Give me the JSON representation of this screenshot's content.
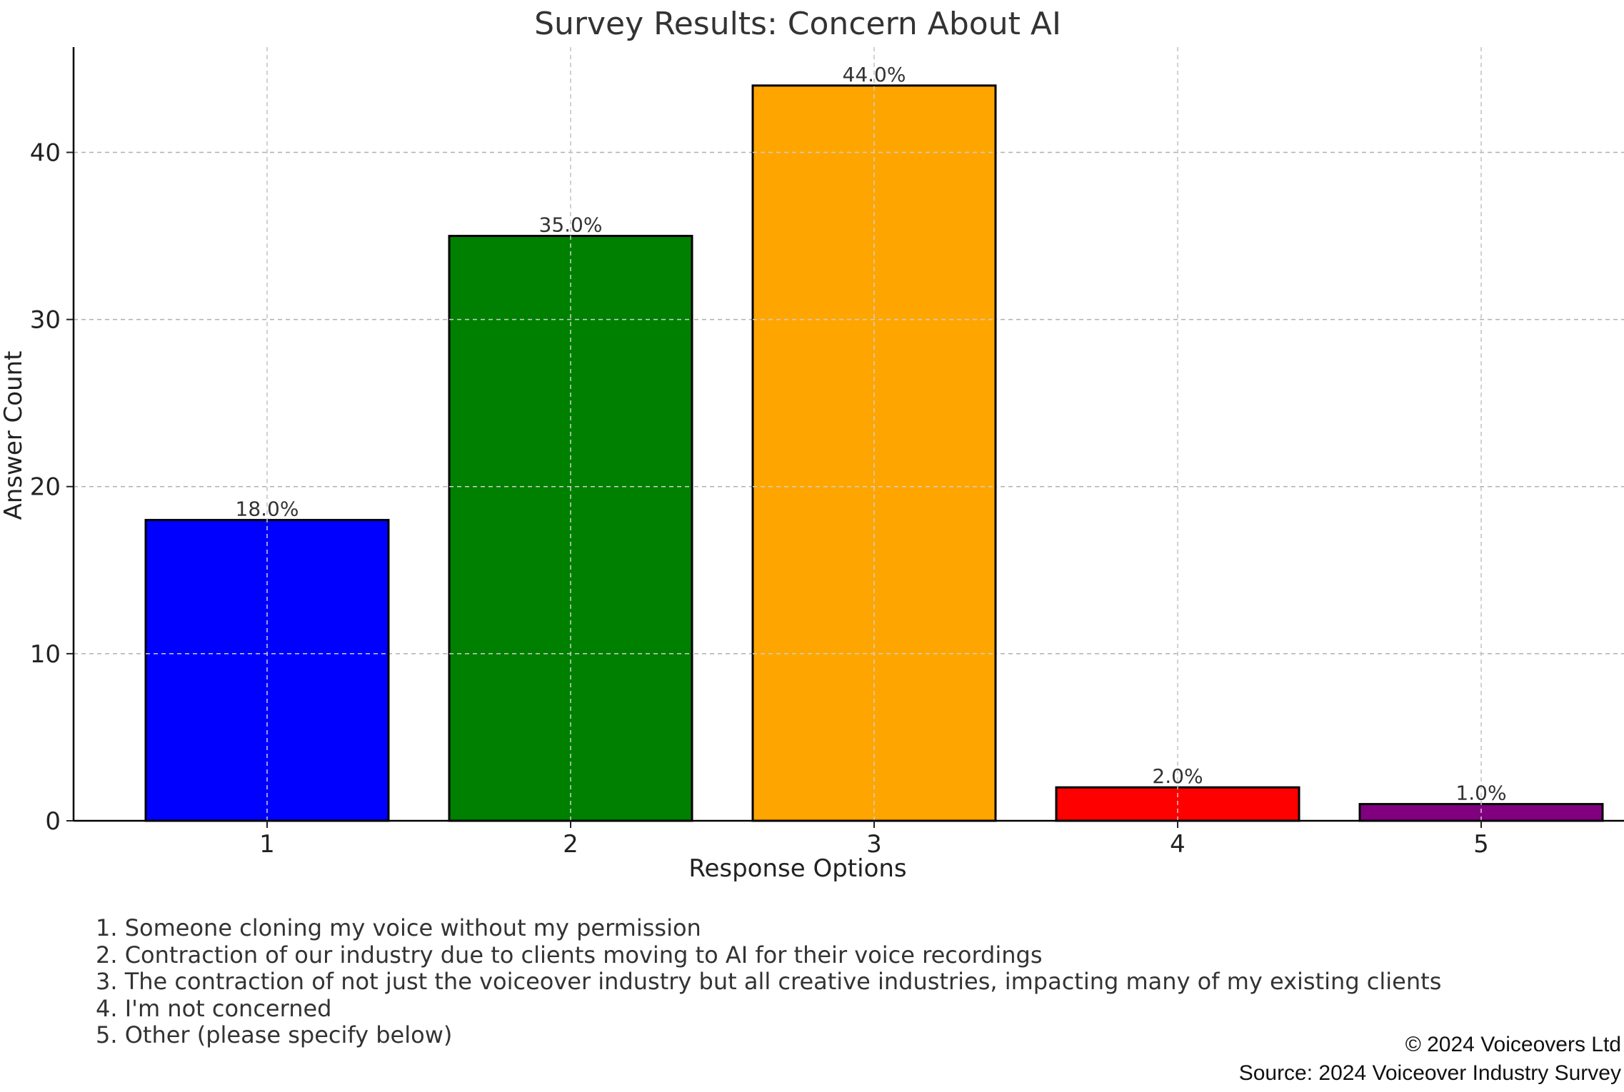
{
  "chart_data": {
    "type": "bar",
    "title": "Survey Results: Concern About AI",
    "xlabel": "Response Options",
    "ylabel": "Answer Count",
    "categories": [
      "1",
      "2",
      "3",
      "4",
      "5"
    ],
    "values": [
      18,
      35,
      44,
      2,
      1
    ],
    "data_labels": [
      "18.0%",
      "35.0%",
      "44.0%",
      "2.0%",
      "1.0%"
    ],
    "colors": [
      "#0000ff",
      "#008000",
      "#ffa500",
      "#ff0000",
      "#800080"
    ],
    "ylim": [
      0,
      46.3
    ],
    "yticks": [
      0,
      10,
      20,
      30,
      40
    ],
    "grid": true,
    "legend": "none"
  },
  "notes": [
    "1. Someone cloning my voice without my permission",
    "2. Contraction of our industry due to clients moving to AI for their voice recordings",
    "3. The contraction of not just the voiceover industry but all creative industries, impacting many of my existing clients",
    "4. I'm not concerned",
    "5. Other (please specify below)"
  ],
  "footer": {
    "copyright": "© 2024 Voiceovers Ltd",
    "source": "Source: 2024 Voiceover Industry Survey"
  }
}
